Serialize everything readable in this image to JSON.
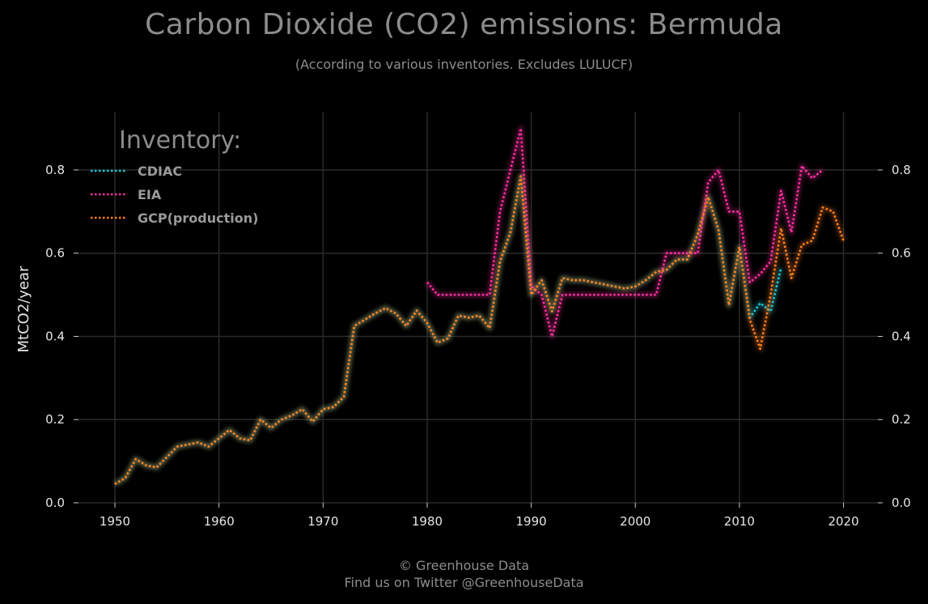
{
  "header": {
    "title": "Carbon Dioxide (CO2) emissions: Bermuda",
    "subtitle": "(According to various inventories. Excludes LULUCF)"
  },
  "footer": {
    "line1": "© Greenhouse Data",
    "line2": "Find us on Twitter @GreenhouseData"
  },
  "chart_data": {
    "type": "line",
    "title": "Carbon Dioxide (CO2) emissions: Bermuda",
    "subtitle": "(According to various inventories. Excludes LULUCF)",
    "xlabel": "",
    "ylabel": "MtCO2/year",
    "xlim": [
      1946.5,
      2023.3
    ],
    "ylim": [
      0.0,
      0.94
    ],
    "x_ticks": [
      1950,
      1960,
      1970,
      1980,
      1990,
      2000,
      2010,
      2020
    ],
    "y_ticks": [
      0.0,
      0.2,
      0.4,
      0.6,
      0.8
    ],
    "y_tick_labels": [
      "0.0",
      "0.2",
      "0.4",
      "0.6",
      "0.8"
    ],
    "grid": true,
    "legend": {
      "title": "Inventory:",
      "placement": "top-left"
    },
    "series": [
      {
        "name": "CDIAC",
        "color": "#18c8d8",
        "x": [
          1950,
          1951,
          1952,
          1953,
          1954,
          1955,
          1956,
          1957,
          1958,
          1959,
          1960,
          1961,
          1962,
          1963,
          1964,
          1965,
          1966,
          1967,
          1968,
          1969,
          1970,
          1971,
          1972,
          1973,
          1974,
          1975,
          1976,
          1977,
          1978,
          1979,
          1980,
          1981,
          1982,
          1983,
          1984,
          1985,
          1986,
          1987,
          1988,
          1989,
          1990,
          1991,
          1992,
          1993,
          1994,
          1995,
          1996,
          1997,
          1998,
          1999,
          2000,
          2001,
          2002,
          2003,
          2004,
          2005,
          2006,
          2007,
          2008,
          2009,
          2010,
          2011,
          2012,
          2013,
          2014
        ],
        "y": [
          0.045,
          0.06,
          0.105,
          0.09,
          0.085,
          0.11,
          0.135,
          0.14,
          0.145,
          0.135,
          0.155,
          0.175,
          0.155,
          0.15,
          0.2,
          0.18,
          0.2,
          0.21,
          0.225,
          0.195,
          0.225,
          0.23,
          0.255,
          0.425,
          0.44,
          0.455,
          0.468,
          0.455,
          0.425,
          0.462,
          0.432,
          0.385,
          0.395,
          0.45,
          0.445,
          0.45,
          0.42,
          0.58,
          0.65,
          0.785,
          0.5,
          0.535,
          0.46,
          0.54,
          0.535,
          0.535,
          0.53,
          0.525,
          0.52,
          0.515,
          0.52,
          0.535,
          0.555,
          0.56,
          0.585,
          0.585,
          0.645,
          0.735,
          0.655,
          0.475,
          0.615,
          0.445,
          0.48,
          0.46,
          0.565
        ]
      },
      {
        "name": "EIA",
        "color": "#ff2fa0",
        "x": [
          1980,
          1981,
          1982,
          1983,
          1984,
          1985,
          1986,
          1987,
          1988,
          1989,
          1990,
          1991,
          1992,
          1993,
          1994,
          1995,
          1996,
          1997,
          1998,
          1999,
          2000,
          2001,
          2002,
          2003,
          2004,
          2005,
          2006,
          2007,
          2008,
          2009,
          2010,
          2011,
          2012,
          2013,
          2014,
          2015,
          2016,
          2017,
          2018
        ],
        "y": [
          0.53,
          0.5,
          0.5,
          0.5,
          0.5,
          0.5,
          0.5,
          0.7,
          0.8,
          0.9,
          0.52,
          0.5,
          0.4,
          0.5,
          0.5,
          0.5,
          0.5,
          0.5,
          0.5,
          0.5,
          0.5,
          0.5,
          0.5,
          0.6,
          0.6,
          0.6,
          0.6,
          0.77,
          0.8,
          0.7,
          0.7,
          0.53,
          0.55,
          0.58,
          0.75,
          0.65,
          0.81,
          0.78,
          0.8
        ]
      },
      {
        "name": "GCP(production)",
        "color": "#ff7f1a",
        "x": [
          1950,
          1951,
          1952,
          1953,
          1954,
          1955,
          1956,
          1957,
          1958,
          1959,
          1960,
          1961,
          1962,
          1963,
          1964,
          1965,
          1966,
          1967,
          1968,
          1969,
          1970,
          1971,
          1972,
          1973,
          1974,
          1975,
          1976,
          1977,
          1978,
          1979,
          1980,
          1981,
          1982,
          1983,
          1984,
          1985,
          1986,
          1987,
          1988,
          1989,
          1990,
          1991,
          1992,
          1993,
          1994,
          1995,
          1996,
          1997,
          1998,
          1999,
          2000,
          2001,
          2002,
          2003,
          2004,
          2005,
          2006,
          2007,
          2008,
          2009,
          2010,
          2011,
          2012,
          2013,
          2014,
          2015,
          2016,
          2017,
          2018,
          2019,
          2020
        ],
        "y": [
          0.045,
          0.06,
          0.105,
          0.09,
          0.085,
          0.11,
          0.135,
          0.14,
          0.145,
          0.135,
          0.155,
          0.175,
          0.155,
          0.15,
          0.2,
          0.18,
          0.2,
          0.21,
          0.225,
          0.195,
          0.225,
          0.23,
          0.255,
          0.425,
          0.44,
          0.455,
          0.468,
          0.455,
          0.425,
          0.462,
          0.432,
          0.385,
          0.395,
          0.45,
          0.445,
          0.45,
          0.42,
          0.58,
          0.65,
          0.785,
          0.5,
          0.535,
          0.46,
          0.54,
          0.535,
          0.535,
          0.53,
          0.525,
          0.52,
          0.515,
          0.52,
          0.535,
          0.555,
          0.56,
          0.585,
          0.585,
          0.645,
          0.735,
          0.655,
          0.475,
          0.615,
          0.44,
          0.37,
          0.5,
          0.66,
          0.54,
          0.62,
          0.63,
          0.71,
          0.7,
          0.63
        ]
      }
    ]
  }
}
